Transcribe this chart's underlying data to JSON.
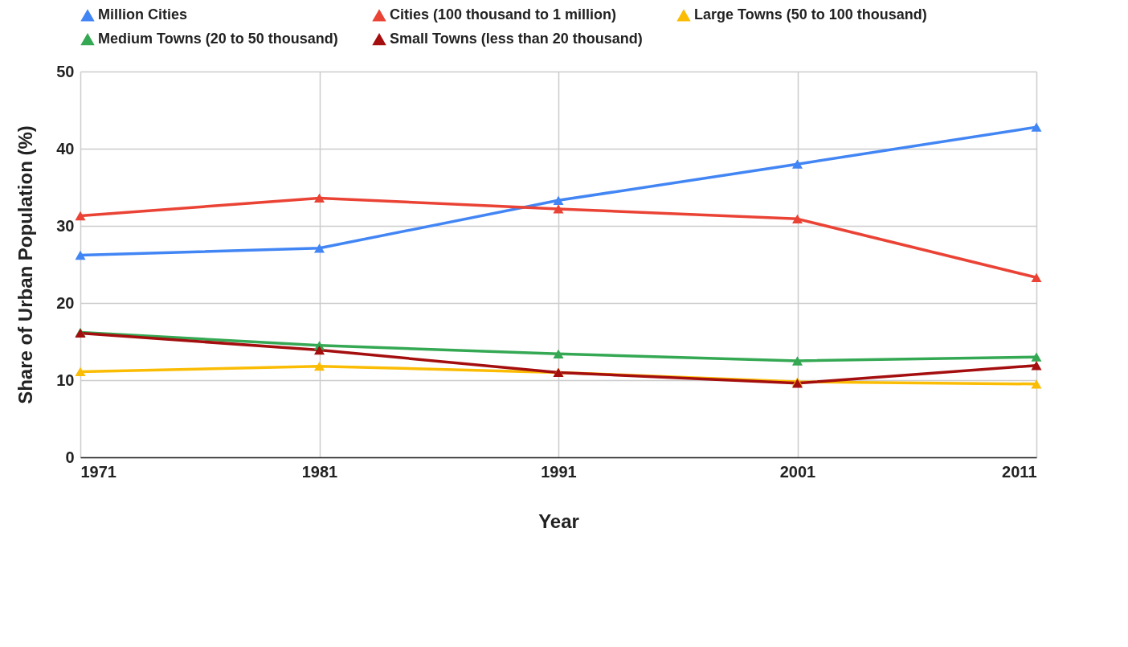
{
  "chart_data": {
    "type": "line",
    "xlabel": "Year",
    "ylabel": "Share of Urban Population (%)",
    "x": [
      1971,
      1981,
      1991,
      2001,
      2011
    ],
    "xlim": [
      1971,
      2011
    ],
    "xticks": [
      1971,
      1981,
      1991,
      2001,
      2011
    ],
    "ylim": [
      0,
      50
    ],
    "yticks": [
      0,
      10,
      20,
      30,
      40,
      50
    ],
    "grid": true,
    "legend": "top",
    "marker": "triangle",
    "series": [
      {
        "name": "Million Cities",
        "color": "#4285f4",
        "values": [
          26.2,
          27.1,
          33.3,
          38.0,
          42.8
        ]
      },
      {
        "name": "Cities (100 thousand to 1 million)",
        "color": "#ea4335",
        "values": [
          31.3,
          33.6,
          32.2,
          30.9,
          23.3
        ]
      },
      {
        "name": "Large Towns (50 to 100 thousand)",
        "color": "#fbbc04",
        "values": [
          11.1,
          11.8,
          11.0,
          9.8,
          9.5
        ]
      },
      {
        "name": "Medium Towns (20 to 50 thousand)",
        "color": "#34a853",
        "values": [
          16.2,
          14.5,
          13.4,
          12.5,
          13.0
        ]
      },
      {
        "name": "Small Towns (less than 20 thousand)",
        "color": "#a50e0e",
        "values": [
          16.1,
          13.9,
          11.0,
          9.6,
          11.9
        ]
      }
    ]
  }
}
